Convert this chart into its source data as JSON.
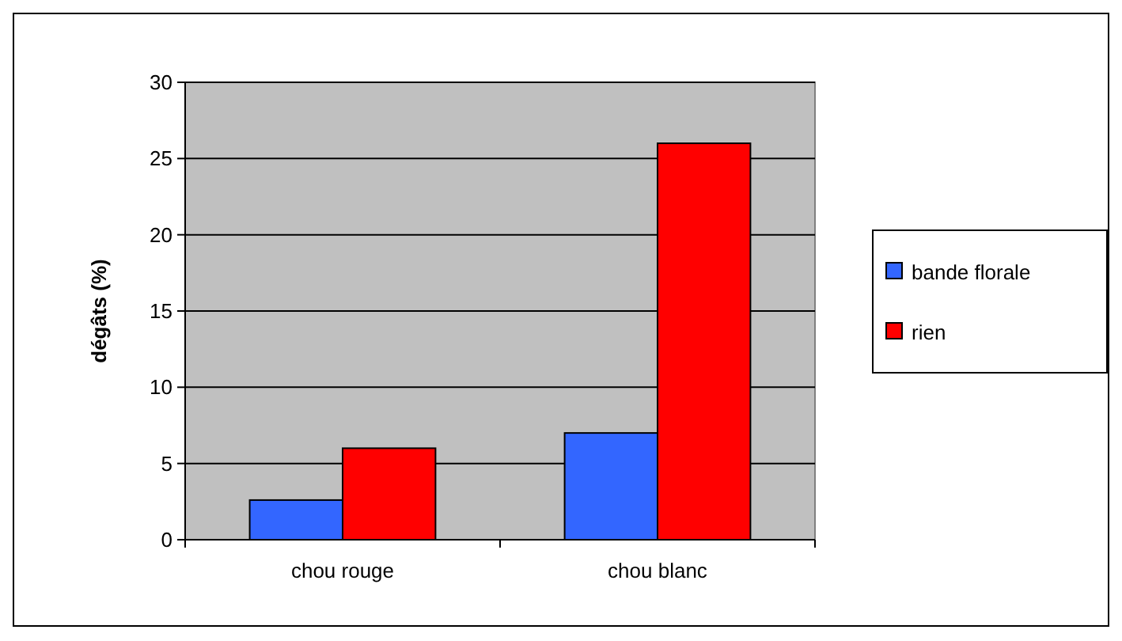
{
  "chart_data": {
    "type": "bar",
    "ylabel": "dégâts (%)",
    "categories": [
      "chou rouge",
      "chou blanc"
    ],
    "series": [
      {
        "name": "bande florale",
        "color": "#3366ff",
        "values": [
          2.6,
          7
        ]
      },
      {
        "name": "rien",
        "color": "#ff0000",
        "values": [
          6,
          26
        ]
      }
    ],
    "ylim": [
      0,
      30
    ],
    "yticks": [
      0,
      5,
      10,
      15,
      20,
      25,
      30
    ],
    "grid": "y",
    "legend": "right"
  }
}
